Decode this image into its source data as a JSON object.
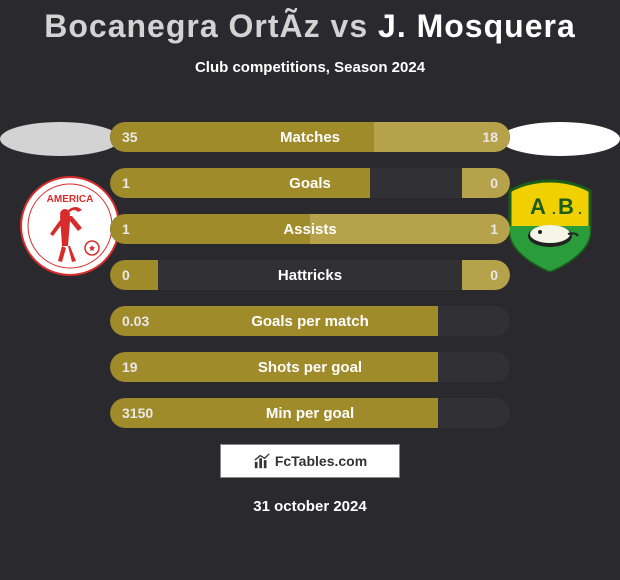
{
  "title": {
    "player1": "Bocanegra OrtÃ­z",
    "vs": "vs",
    "player2": "J. Mosquera",
    "p1_color": "#d3d3d3",
    "p2_color": "#ffffff"
  },
  "subtitle": "Club competitions, Season 2024",
  "stats": [
    {
      "label": "Matches",
      "left_val": "35",
      "right_val": "18",
      "left_pct": 66,
      "right_pct": 34
    },
    {
      "label": "Goals",
      "left_val": "1",
      "right_val": "0",
      "left_pct": 65,
      "right_pct": 12
    },
    {
      "label": "Assists",
      "left_val": "1",
      "right_val": "1",
      "left_pct": 50,
      "right_pct": 50
    },
    {
      "label": "Hattricks",
      "left_val": "0",
      "right_val": "0",
      "left_pct": 12,
      "right_pct": 12
    },
    {
      "label": "Goals per match",
      "left_val": "0.03",
      "right_val": "",
      "left_pct": 82,
      "right_pct": 0
    },
    {
      "label": "Shots per goal",
      "left_val": "19",
      "right_val": "",
      "left_pct": 82,
      "right_pct": 0
    },
    {
      "label": "Min per goal",
      "left_val": "3150",
      "right_val": "",
      "left_pct": 82,
      "right_pct": 0
    }
  ],
  "stat_colors": {
    "left_fill": "#a08b2a",
    "right_fill": "#b5a24a",
    "track": "#313135",
    "text": "#ffffff",
    "val_text": "#e8e8e8"
  },
  "ovals": {
    "left_color": "#d3d3d3",
    "right_color": "#ffffff"
  },
  "brand": "FcTables.com",
  "date": "31 october 2024",
  "background_color": "#2a2a2e",
  "logos": {
    "left": {
      "name": "America",
      "bg": "#ffffff",
      "accent": "#d82c2c"
    },
    "right": {
      "name": "A.B.",
      "bg_top": "#f0d000",
      "bg_bottom": "#2a9d3a"
    }
  }
}
